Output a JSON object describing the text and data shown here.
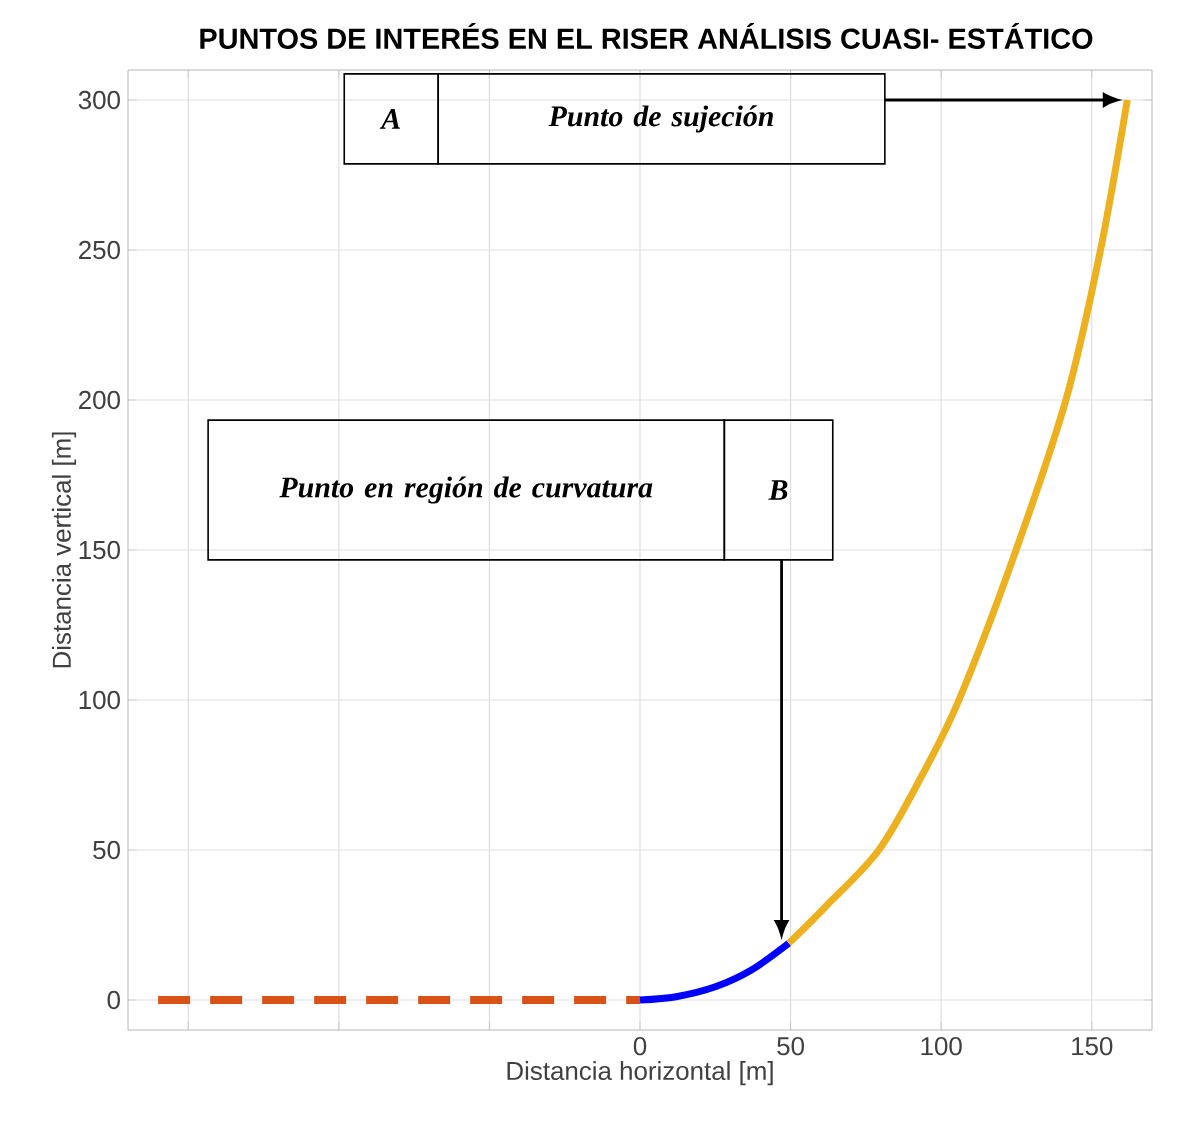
{
  "chart_data": {
    "type": "line",
    "title": "PUNTOS DE INTERÉS EN EL RISER ANÁLISIS CUASI- ESTÁTICO",
    "xlabel": "Distancia horizontal [m]",
    "ylabel": "Distancia vertical [m]",
    "xlim": [
      -170,
      170
    ],
    "ylim": [
      -10,
      310
    ],
    "xticks": [
      {
        "value": -150,
        "label": null
      },
      {
        "value": -100,
        "label": null
      },
      {
        "value": -50,
        "label": null
      },
      0,
      50,
      100,
      150
    ],
    "yticks": [
      0,
      50,
      100,
      150,
      200,
      250,
      300
    ],
    "grid": true,
    "marker": "none",
    "series": [
      {
        "color": "#d95319",
        "line_style": "dashed",
        "x": [
          -160,
          0
        ],
        "values": [
          0,
          0
        ]
      },
      {
        "color": "#0000ff",
        "line_style": "solid",
        "x": [
          0,
          12,
          25,
          37,
          49.4
        ],
        "values": [
          0,
          1.1,
          4.4,
          10,
          18.9
        ]
      },
      {
        "color": "#edb120",
        "line_style": "solid",
        "x": [
          49.4,
          61.6,
          79.3,
          93.7,
          105.9,
          123.7,
          141.4,
          152.9,
          161.8
        ],
        "values": [
          18.9,
          31.1,
          50,
          75,
          100,
          146.7,
          200,
          250,
          300
        ]
      }
    ],
    "annotations": [
      "A",
      "Punto de sujeción",
      "B",
      "Punto en región de curvatura"
    ]
  }
}
